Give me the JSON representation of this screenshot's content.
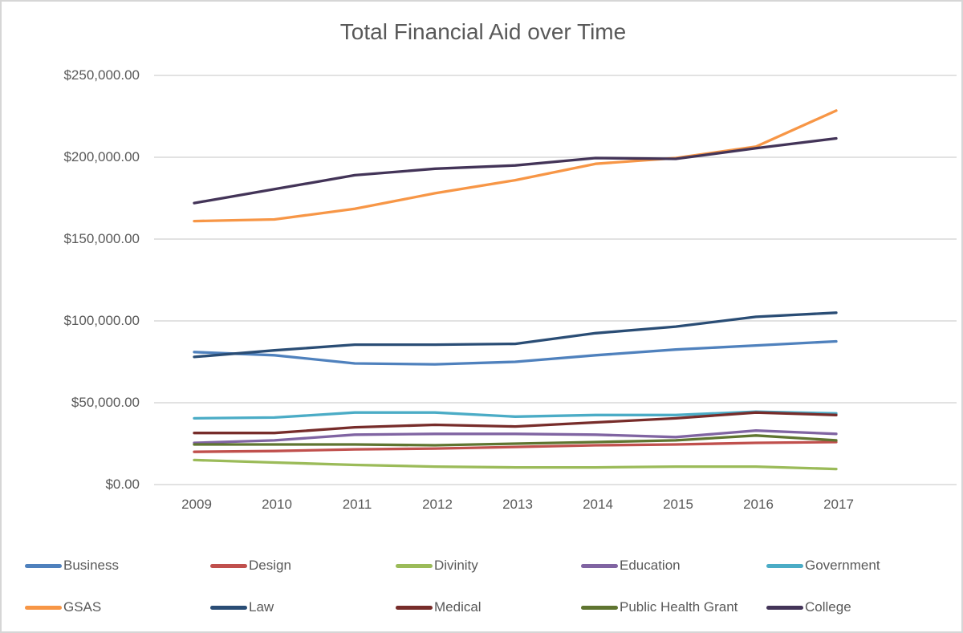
{
  "window": {
    "background": "#ffffff",
    "border_color": "#d6d6d6",
    "text_color": "#595959",
    "gridline_color": "#d9d9d9"
  },
  "chart_data": {
    "type": "line",
    "title": "Total Financial Aid over Time",
    "xlabel": "",
    "ylabel": "",
    "x_tick_labels": [
      "2009",
      "2010",
      "2011",
      "2012",
      "2013",
      "2014",
      "2015",
      "2016",
      "2017"
    ],
    "y_axis": {
      "min": 0,
      "max": 250000,
      "step": 50000,
      "tick_labels": [
        "$0.00",
        "$50,000.00",
        "$100,000.00",
        "$150,000.00",
        "$200,000.00",
        "$250,000.00"
      ]
    },
    "grid": true,
    "legend_position": "bottom",
    "series": [
      {
        "name": "Business",
        "color": "#4f81bd",
        "values": [
          81000,
          79000,
          74000,
          73500,
          75000,
          79000,
          82500,
          85000,
          87500
        ]
      },
      {
        "name": "Design",
        "color": "#c0504d",
        "values": [
          20000,
          20500,
          21500,
          22000,
          23000,
          24000,
          24500,
          25500,
          26000
        ]
      },
      {
        "name": "Divinity",
        "color": "#9bbb59",
        "values": [
          15000,
          13500,
          12000,
          11000,
          10500,
          10500,
          11000,
          11000,
          9500
        ]
      },
      {
        "name": "Education",
        "color": "#8064a2",
        "values": [
          25500,
          27000,
          30500,
          31000,
          31000,
          30500,
          29000,
          33000,
          31000
        ]
      },
      {
        "name": "Government",
        "color": "#4bacc6",
        "values": [
          40500,
          41000,
          44000,
          44000,
          41500,
          42500,
          42500,
          44500,
          43500
        ]
      },
      {
        "name": "GSAS",
        "color": "#f79646",
        "values": [
          161000,
          162000,
          168500,
          178000,
          186000,
          196000,
          199500,
          206500,
          228500
        ]
      },
      {
        "name": "Law",
        "color": "#2a4d75",
        "values": [
          78000,
          82000,
          85500,
          85500,
          86000,
          92500,
          96500,
          102500,
          105000
        ]
      },
      {
        "name": "Medical",
        "color": "#772c2a",
        "values": [
          31500,
          31500,
          35000,
          36500,
          35500,
          38000,
          40500,
          44000,
          42500
        ]
      },
      {
        "name": "Public Health Grant",
        "color": "#5f7530",
        "values": [
          24500,
          24500,
          24500,
          24000,
          25000,
          26000,
          27000,
          30000,
          27000
        ]
      },
      {
        "name": "College",
        "color": "#433458",
        "values": [
          172000,
          180500,
          189000,
          193000,
          195000,
          199500,
          199000,
          205500,
          211500
        ]
      }
    ]
  }
}
